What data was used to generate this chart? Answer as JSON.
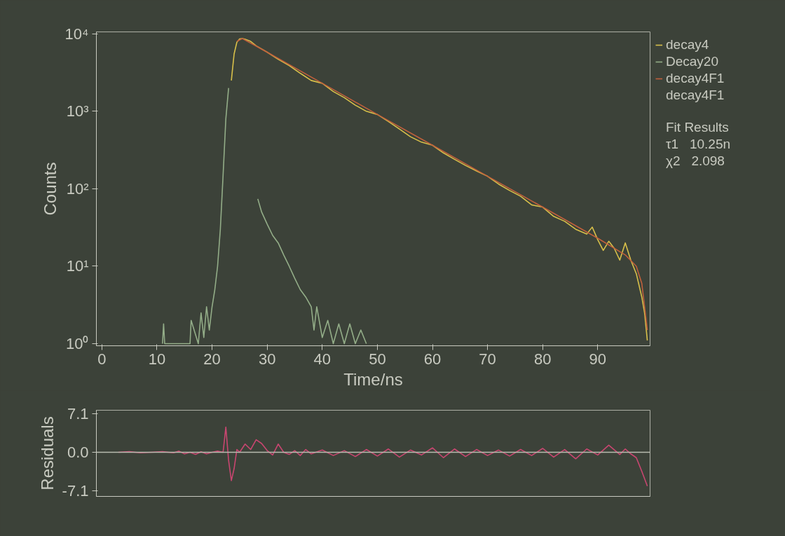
{
  "chart_data": [
    {
      "type": "line",
      "xlabel": "Time/ns",
      "ylabel": "Counts",
      "log": "y",
      "xlim": [
        -1,
        99.5
      ],
      "ylim": [
        0.94,
        10600
      ],
      "xticks": [
        0,
        10,
        20,
        30,
        40,
        50,
        60,
        70,
        80,
        90
      ],
      "yticks": [
        {
          "value": 1,
          "label": "10⁰"
        },
        {
          "value": 10,
          "label": "10¹"
        },
        {
          "value": 100,
          "label": "10²"
        },
        {
          "value": 1000,
          "label": "10³"
        },
        {
          "value": 10000,
          "label": "10⁴"
        }
      ],
      "legend": "right",
      "grid": false,
      "marker": "none",
      "line_style": "solid",
      "annotations": [
        "Fit Results",
        "τ1   10.25n",
        "χ2   2.098"
      ],
      "series": [
        {
          "name": "decay4",
          "color": "#d8c04a",
          "x": [
            23.5,
            24,
            24.5,
            25,
            25.5,
            26,
            27,
            28,
            30,
            32,
            34,
            36,
            38,
            40,
            42,
            44,
            46,
            48,
            50,
            52,
            54,
            56,
            58,
            60,
            62,
            64,
            66,
            68,
            70,
            72,
            74,
            76,
            78,
            80,
            82,
            84,
            86,
            88,
            89,
            90,
            91,
            92,
            93,
            94,
            95,
            96,
            97,
            98,
            98.5,
            99
          ],
          "values": [
            2500,
            5500,
            7800,
            8600,
            8700,
            8500,
            8000,
            7000,
            5800,
            4700,
            3900,
            3100,
            2500,
            2300,
            1800,
            1500,
            1200,
            1000,
            910,
            740,
            590,
            470,
            400,
            365,
            290,
            240,
            200,
            170,
            145,
            115,
            95,
            80,
            62,
            58,
            44,
            38,
            30,
            26,
            32,
            22,
            16,
            21,
            17,
            12,
            20,
            12,
            8,
            4,
            2.5,
            1.1
          ]
        },
        {
          "name": "Decay20",
          "color": "#93ad88",
          "x": [
            11,
            11.2,
            11.4,
            16,
            16.2,
            17.5,
            18,
            18.5,
            19,
            19.5,
            20,
            20.5,
            21,
            21.5,
            22,
            22.5,
            23,
            24.5,
            28.3,
            29,
            30,
            31,
            32,
            33,
            34,
            35,
            36,
            37,
            38,
            38.5,
            39,
            40,
            41,
            42,
            43,
            44,
            45,
            46,
            47,
            48
          ],
          "values": [
            1,
            1.8,
            1,
            1,
            2,
            1,
            2.5,
            1.2,
            3,
            1.5,
            3,
            5,
            10,
            30,
            150,
            800,
            2000,
            null,
            74,
            50,
            35,
            25,
            20,
            14,
            10,
            7,
            5,
            4,
            3,
            1.5,
            3,
            1.2,
            2,
            1,
            1.8,
            1,
            1.8,
            1,
            1.5,
            1
          ]
        },
        {
          "name": "decay4F1",
          "color": "#c0603c",
          "x": [
            24.5,
            25.5,
            30,
            40,
            50,
            60,
            70,
            80,
            90,
            95,
            97,
            98,
            99
          ],
          "values": [
            8000,
            8700,
            5800,
            2300,
            910,
            365,
            145,
            58,
            23,
            14,
            10,
            6,
            1.5
          ]
        }
      ]
    },
    {
      "type": "line",
      "ylabel": "Residuals",
      "xlim": [
        -1,
        99.5
      ],
      "ylim": [
        -8.1,
        7.7
      ],
      "tick_labels": "y",
      "grid": false,
      "yticks": [
        {
          "value": 7.1,
          "label": "7.1"
        },
        {
          "value": 0,
          "label": "0.0"
        },
        {
          "value": -7.1,
          "label": "-7.1"
        }
      ],
      "ref_lines": [
        {
          "axis": "y",
          "value": 0,
          "color": "#b8bcb0"
        }
      ],
      "series": [
        {
          "name": "decay4F1",
          "color": "#c84670",
          "x": [
            3,
            5,
            7,
            9,
            11,
            13,
            14,
            15,
            16,
            17,
            18,
            19,
            20,
            21,
            22,
            22.5,
            23,
            23.5,
            24,
            24.5,
            25,
            26,
            27,
            28,
            29,
            30,
            31,
            32,
            33,
            34,
            35,
            36,
            37,
            38,
            40,
            42,
            44,
            46,
            48,
            50,
            52,
            54,
            56,
            58,
            60,
            62,
            64,
            66,
            68,
            70,
            72,
            74,
            76,
            78,
            80,
            82,
            84,
            86,
            88,
            90,
            92,
            94,
            95,
            96,
            97,
            98,
            99
          ],
          "values": [
            0,
            0.1,
            -0.1,
            0,
            0.1,
            -0.1,
            0.2,
            -0.3,
            0,
            -0.4,
            0.1,
            -0.3,
            0,
            0.2,
            0,
            4.6,
            -1.5,
            -5.2,
            -3,
            0.5,
            0,
            1.5,
            0.5,
            2.3,
            1.6,
            0.3,
            -0.5,
            1.5,
            0,
            -0.4,
            0.3,
            -0.6,
            0.5,
            -0.3,
            0.4,
            -0.6,
            0.3,
            -0.8,
            0.5,
            -0.7,
            0.6,
            -0.9,
            0.4,
            -0.5,
            0.8,
            -1,
            0.6,
            -0.8,
            0.5,
            -0.6,
            0.4,
            -0.7,
            0.5,
            -0.6,
            0.7,
            -0.9,
            0.5,
            -1.2,
            0.6,
            -0.5,
            1.3,
            -0.4,
            0.6,
            -0.3,
            -1,
            -3.5,
            -6.2
          ]
        }
      ]
    }
  ]
}
